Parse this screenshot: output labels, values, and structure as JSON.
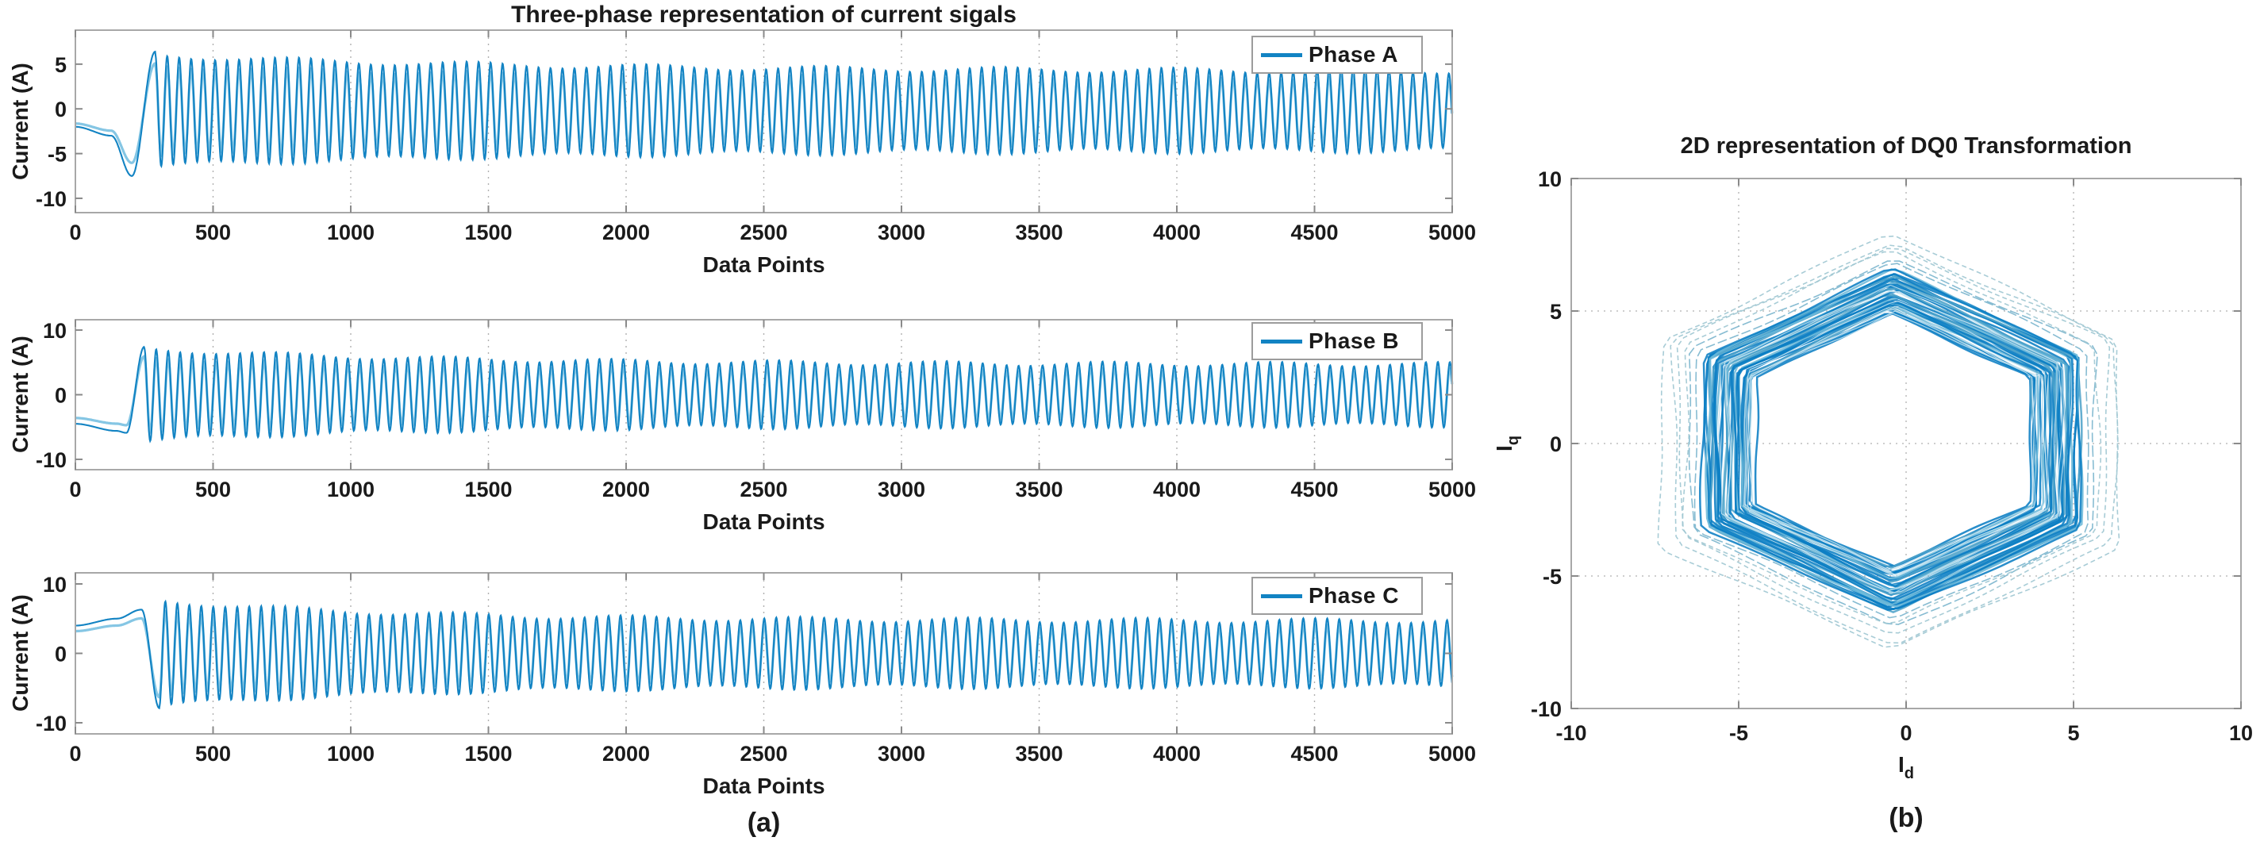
{
  "figure": {
    "background": "#ffffff"
  },
  "captions": {
    "left": "(a)",
    "right": "(b)"
  },
  "colors": {
    "line_main": "#1283c3",
    "line_light": "#85c6e4",
    "ring_main": "#0b7ec4",
    "ring_mid": "#4fa3c9",
    "ring_light": "#6db9da",
    "ring_faint": "#9fc6d2",
    "grid": "#b0b0b0",
    "axis_box": "#a8a8a8",
    "tick_mark": "#8a8a8a",
    "tick_text": "#1a1a1a"
  },
  "chart_data": [
    {
      "id": "phase-a",
      "type": "line",
      "title": "Three-phase representation of current sigals",
      "xlabel": "Data Points",
      "ylabel": "Current (A)",
      "xlim": [
        0,
        5000
      ],
      "ylim": [
        -11.6,
        8.8
      ],
      "x_ticks": [
        0,
        500,
        1000,
        1500,
        2000,
        2500,
        3000,
        3500,
        4000,
        4500,
        5000
      ],
      "y_ticks": [
        5,
        0,
        -5,
        -10
      ],
      "grid": "vertical-dotted",
      "legend_position": "top-right",
      "series": [
        {
          "name": "Phase A",
          "color": "#1283c3",
          "signal": {
            "v0": -2.0,
            "d0": -1.0,
            "t1": 130,
            "v2": -7.5,
            "t2": 205,
            "v3": 6.4,
            "t3": 290,
            "offset": -0.2,
            "period": 43.5,
            "amp": 4.4,
            "decay": 1.8,
            "tau": 1400,
            "mod": 0.3,
            "mod_period": 640
          }
        }
      ]
    },
    {
      "id": "phase-b",
      "type": "line",
      "title": "",
      "xlabel": "Data Points",
      "ylabel": "Current (A)",
      "xlim": [
        0,
        5000
      ],
      "ylim": [
        -11.6,
        11.6
      ],
      "x_ticks": [
        0,
        500,
        1000,
        1500,
        2000,
        2500,
        3000,
        3500,
        4000,
        4500,
        5000
      ],
      "y_ticks": [
        10,
        0,
        -10
      ],
      "grid": "vertical-dotted",
      "legend_position": "top-right",
      "series": [
        {
          "name": "Phase B",
          "color": "#1283c3",
          "signal": {
            "v0": -4.5,
            "d0": -1.1,
            "t1": 150,
            "v2": -5.9,
            "t2": 185,
            "v3": 7.4,
            "t3": 250,
            "offset": 0,
            "period": 43.5,
            "amp": 4.7,
            "decay": 2.4,
            "tau": 1100,
            "mod": 0.35,
            "mod_period": 600
          }
        }
      ]
    },
    {
      "id": "phase-c",
      "type": "line",
      "title": "",
      "xlabel": "Data Points",
      "ylabel": "Current (A)",
      "xlim": [
        0,
        5000
      ],
      "ylim": [
        -11.6,
        11.6
      ],
      "x_ticks": [
        0,
        500,
        1000,
        1500,
        2000,
        2500,
        3000,
        3500,
        4000,
        4500,
        5000
      ],
      "y_ticks": [
        10,
        0,
        -10
      ],
      "grid": "vertical-dotted",
      "legend_position": "top-right",
      "series": [
        {
          "name": "Phase C",
          "color": "#1283c3",
          "signal": {
            "v0": 4.0,
            "d0": 1.0,
            "t1": 150,
            "v2": 6.3,
            "t2": 240,
            "v3": -7.9,
            "t3": 305,
            "offset": 0,
            "period": 43.5,
            "amp": 4.7,
            "decay": 2.9,
            "tau": 900,
            "mod": 0.35,
            "mod_period": 620
          }
        }
      ]
    },
    {
      "id": "dq0-trajectory",
      "type": "trajectory",
      "title": "2D representation of DQ0 Transformation",
      "xlabel_main": "I",
      "xlabel_sub": "d",
      "ylabel_main": "I",
      "ylabel_sub": "q",
      "xlim": [
        -10,
        10
      ],
      "ylim": [
        -10,
        10
      ],
      "x_ticks": [
        -10,
        -5,
        0,
        5,
        10
      ],
      "y_ticks": [
        10,
        5,
        0,
        -5,
        -10
      ],
      "grid": "dotted",
      "trajectory": {
        "shape": "hexagon",
        "center": [
          -0.4,
          0.1
        ],
        "rotation_deg": -5,
        "dense_band": {
          "r_min": 4.85,
          "r_max": 6.5,
          "loops": 36
        },
        "outer_loop_radii": [
          6.75,
          6.95,
          7.1,
          7.35,
          7.6,
          7.85
        ],
        "inner_hole_radius": 4.5
      }
    }
  ]
}
